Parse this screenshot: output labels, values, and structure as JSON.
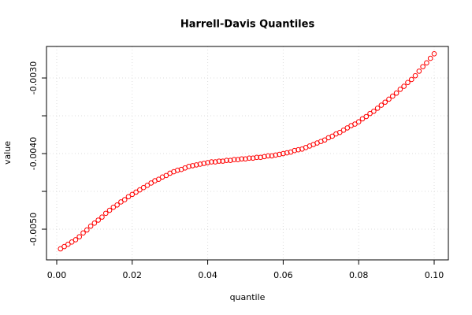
{
  "chart_data": {
    "type": "scatter",
    "title": "Harrell-Davis Quantiles",
    "x_label": "quantile",
    "y_label": "value",
    "x": [
      0.001,
      0.002,
      0.003,
      0.004,
      0.005,
      0.006,
      0.007,
      0.008,
      0.009,
      0.01,
      0.011,
      0.012,
      0.013,
      0.014,
      0.015,
      0.016,
      0.017,
      0.018,
      0.019,
      0.02,
      0.021,
      0.022,
      0.023,
      0.024,
      0.025,
      0.026,
      0.027,
      0.028,
      0.029,
      0.03,
      0.031,
      0.032,
      0.033,
      0.034,
      0.035,
      0.036,
      0.037,
      0.038,
      0.039,
      0.04,
      0.041,
      0.042,
      0.043,
      0.044,
      0.045,
      0.046,
      0.047,
      0.048,
      0.049,
      0.05,
      0.051,
      0.052,
      0.053,
      0.054,
      0.055,
      0.056,
      0.057,
      0.058,
      0.059,
      0.06,
      0.061,
      0.062,
      0.063,
      0.064,
      0.065,
      0.066,
      0.067,
      0.068,
      0.069,
      0.07,
      0.071,
      0.072,
      0.073,
      0.074,
      0.075,
      0.076,
      0.077,
      0.078,
      0.079,
      0.08,
      0.081,
      0.082,
      0.083,
      0.084,
      0.085,
      0.086,
      0.087,
      0.088,
      0.089,
      0.09,
      0.091,
      0.092,
      0.093,
      0.094,
      0.095,
      0.096,
      0.097,
      0.098,
      0.099,
      0.1
    ],
    "series": [
      {
        "name": "value",
        "color": "#ff0000",
        "values": [
          -0.00526,
          -0.00523,
          -0.0052,
          -0.00517,
          -0.00514,
          -0.0051,
          -0.00505,
          -0.00501,
          -0.00496,
          -0.00492,
          -0.00488,
          -0.00484,
          -0.00479,
          -0.00475,
          -0.00471,
          -0.00468,
          -0.00464,
          -0.00461,
          -0.00457,
          -0.00454,
          -0.00451,
          -0.00448,
          -0.00445,
          -0.00442,
          -0.00439,
          -0.00436,
          -0.00434,
          -0.00431,
          -0.00429,
          -0.00426,
          -0.00424,
          -0.00422,
          -0.00421,
          -0.00419,
          -0.00417,
          -0.00416,
          -0.00415,
          -0.00414,
          -0.00413,
          -0.00412,
          -0.00411,
          -0.00411,
          -0.0041,
          -0.0041,
          -0.00409,
          -0.00409,
          -0.00408,
          -0.00408,
          -0.00407,
          -0.00407,
          -0.00406,
          -0.00406,
          -0.00405,
          -0.00405,
          -0.00404,
          -0.00403,
          -0.00403,
          -0.00402,
          -0.00401,
          -0.004,
          -0.00399,
          -0.00398,
          -0.00396,
          -0.00395,
          -0.00394,
          -0.00392,
          -0.0039,
          -0.00388,
          -0.00386,
          -0.00384,
          -0.00382,
          -0.00379,
          -0.00377,
          -0.00374,
          -0.00372,
          -0.00369,
          -0.00366,
          -0.00363,
          -0.00361,
          -0.00358,
          -0.00354,
          -0.00351,
          -0.00347,
          -0.00344,
          -0.0034,
          -0.00336,
          -0.00332,
          -0.00328,
          -0.00324,
          -0.0032,
          -0.00315,
          -0.00311,
          -0.00306,
          -0.00302,
          -0.00297,
          -0.00291,
          -0.00285,
          -0.0028,
          -0.00274,
          -0.00268
        ]
      }
    ],
    "xlim": [
      -0.00271,
      0.10376
    ],
    "ylim": [
      -0.005406,
      -0.002583
    ],
    "xticks": [
      {
        "value": 0,
        "label": "0.00"
      },
      0.02,
      0.04,
      0.06,
      0.08,
      {
        "value": 0.1,
        "label": "0.10"
      }
    ],
    "yticks": [
      {
        "value": -0.005,
        "label": "-0.0050"
      },
      {
        "value": -0.0045,
        "label": null
      },
      {
        "value": -0.004,
        "label": "-0.0040"
      },
      {
        "value": -0.0035,
        "label": null
      },
      {
        "value": -0.003,
        "label": "-0.0030"
      }
    ],
    "grid": true
  }
}
